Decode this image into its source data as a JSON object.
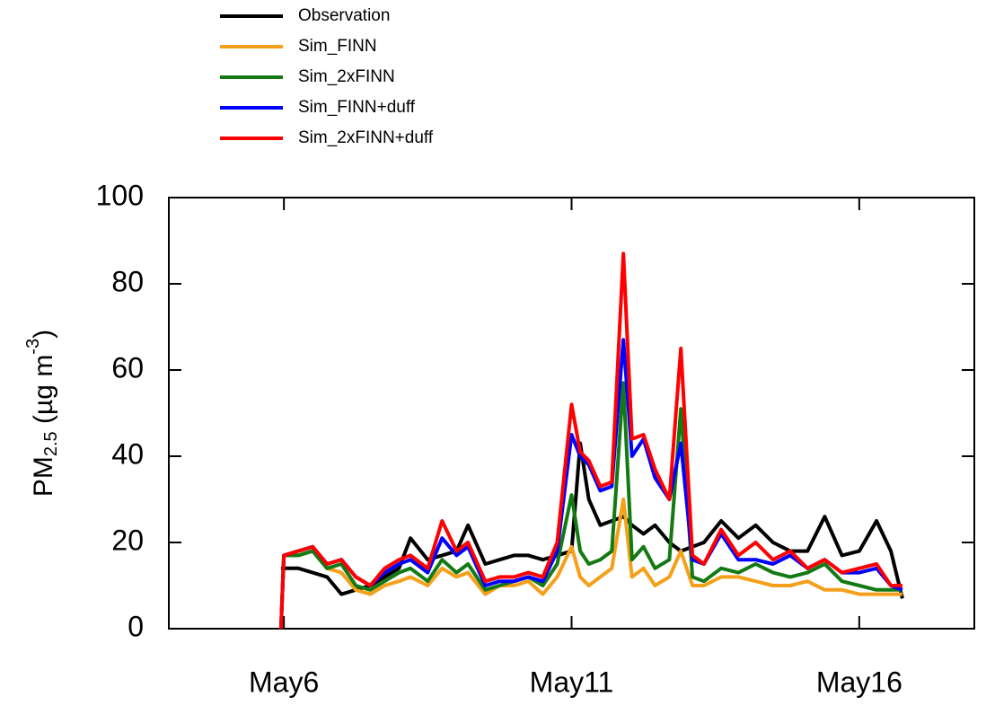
{
  "chart_data": {
    "type": "line",
    "ylabel": {
      "main": "PM",
      "sub": "2.5",
      "mid": " (µg m",
      "sup": "-3",
      "end": ")"
    },
    "x": [
      5.95,
      6.0,
      6.25,
      6.5,
      6.75,
      7.0,
      7.25,
      7.5,
      7.75,
      8.0,
      8.2,
      8.5,
      8.75,
      9.0,
      9.2,
      9.5,
      9.75,
      10.0,
      10.25,
      10.5,
      10.75,
      11.0,
      11.15,
      11.3,
      11.5,
      11.7,
      11.9,
      12.05,
      12.25,
      12.45,
      12.7,
      12.9,
      13.1,
      13.3,
      13.6,
      13.9,
      14.2,
      14.5,
      14.8,
      15.1,
      15.4,
      15.7,
      16.0,
      16.3,
      16.55,
      16.75
    ],
    "series": [
      {
        "name": "Observation",
        "color": "#000000",
        "values": [
          14,
          14,
          14,
          13,
          12,
          8,
          9,
          10,
          12,
          14,
          21,
          16,
          17,
          18,
          24,
          15,
          16,
          17,
          17,
          16,
          17,
          18,
          43,
          30,
          24,
          25,
          26,
          24,
          22,
          24,
          20,
          18,
          19,
          20,
          25,
          21,
          24,
          20,
          18,
          18,
          26,
          17,
          18,
          25,
          18,
          7
        ]
      },
      {
        "name": "Sim_FINN",
        "color": "#f5a01a",
        "values": [
          0,
          17,
          17,
          18,
          14,
          13,
          9,
          8,
          10,
          11,
          12,
          10,
          14,
          12,
          13,
          8,
          10,
          10,
          11,
          8,
          12,
          19,
          12,
          10,
          12,
          14,
          30,
          12,
          14,
          10,
          12,
          18,
          10,
          10,
          12,
          12,
          11,
          10,
          10,
          11,
          9,
          9,
          8,
          8,
          8,
          8
        ]
      },
      {
        "name": "Sim_2xFINN",
        "color": "#137a13",
        "values": [
          0,
          17,
          17,
          18,
          14,
          15,
          10,
          9,
          11,
          13,
          14,
          11,
          16,
          13,
          15,
          9,
          10,
          11,
          12,
          10,
          15,
          31,
          18,
          15,
          16,
          18,
          57,
          16,
          19,
          14,
          16,
          51,
          12,
          11,
          14,
          13,
          15,
          13,
          12,
          13,
          15,
          11,
          10,
          9,
          9,
          9
        ]
      },
      {
        "name": "Sim_FINN+duff",
        "color": "#0000ff",
        "values": [
          0,
          17,
          18,
          19,
          15,
          16,
          12,
          10,
          13,
          15,
          16,
          13,
          21,
          17,
          19,
          10,
          11,
          11,
          12,
          11,
          18,
          45,
          40,
          38,
          32,
          33,
          67,
          40,
          44,
          35,
          30,
          43,
          16,
          15,
          22,
          16,
          16,
          15,
          17,
          14,
          16,
          13,
          13,
          14,
          10,
          9
        ]
      },
      {
        "name": "Sim_2xFINN+duff",
        "color": "#ff0000",
        "values": [
          0,
          17,
          18,
          19,
          15,
          16,
          12,
          10,
          14,
          16,
          17,
          14,
          25,
          18,
          20,
          11,
          12,
          12,
          13,
          12,
          20,
          52,
          41,
          39,
          33,
          34,
          87,
          44,
          45,
          37,
          30,
          65,
          17,
          15,
          23,
          17,
          20,
          16,
          18,
          14,
          16,
          13,
          14,
          15,
          10,
          10
        ]
      }
    ],
    "xlim": [
      4,
      18
    ],
    "xticks": [
      {
        "value": 6,
        "label": "May6"
      },
      {
        "value": 11,
        "label": "May11"
      },
      {
        "value": 16,
        "label": "May16"
      }
    ],
    "ylim": [
      0,
      100
    ],
    "yticks": [
      0,
      20,
      40,
      60,
      80,
      100
    ]
  }
}
